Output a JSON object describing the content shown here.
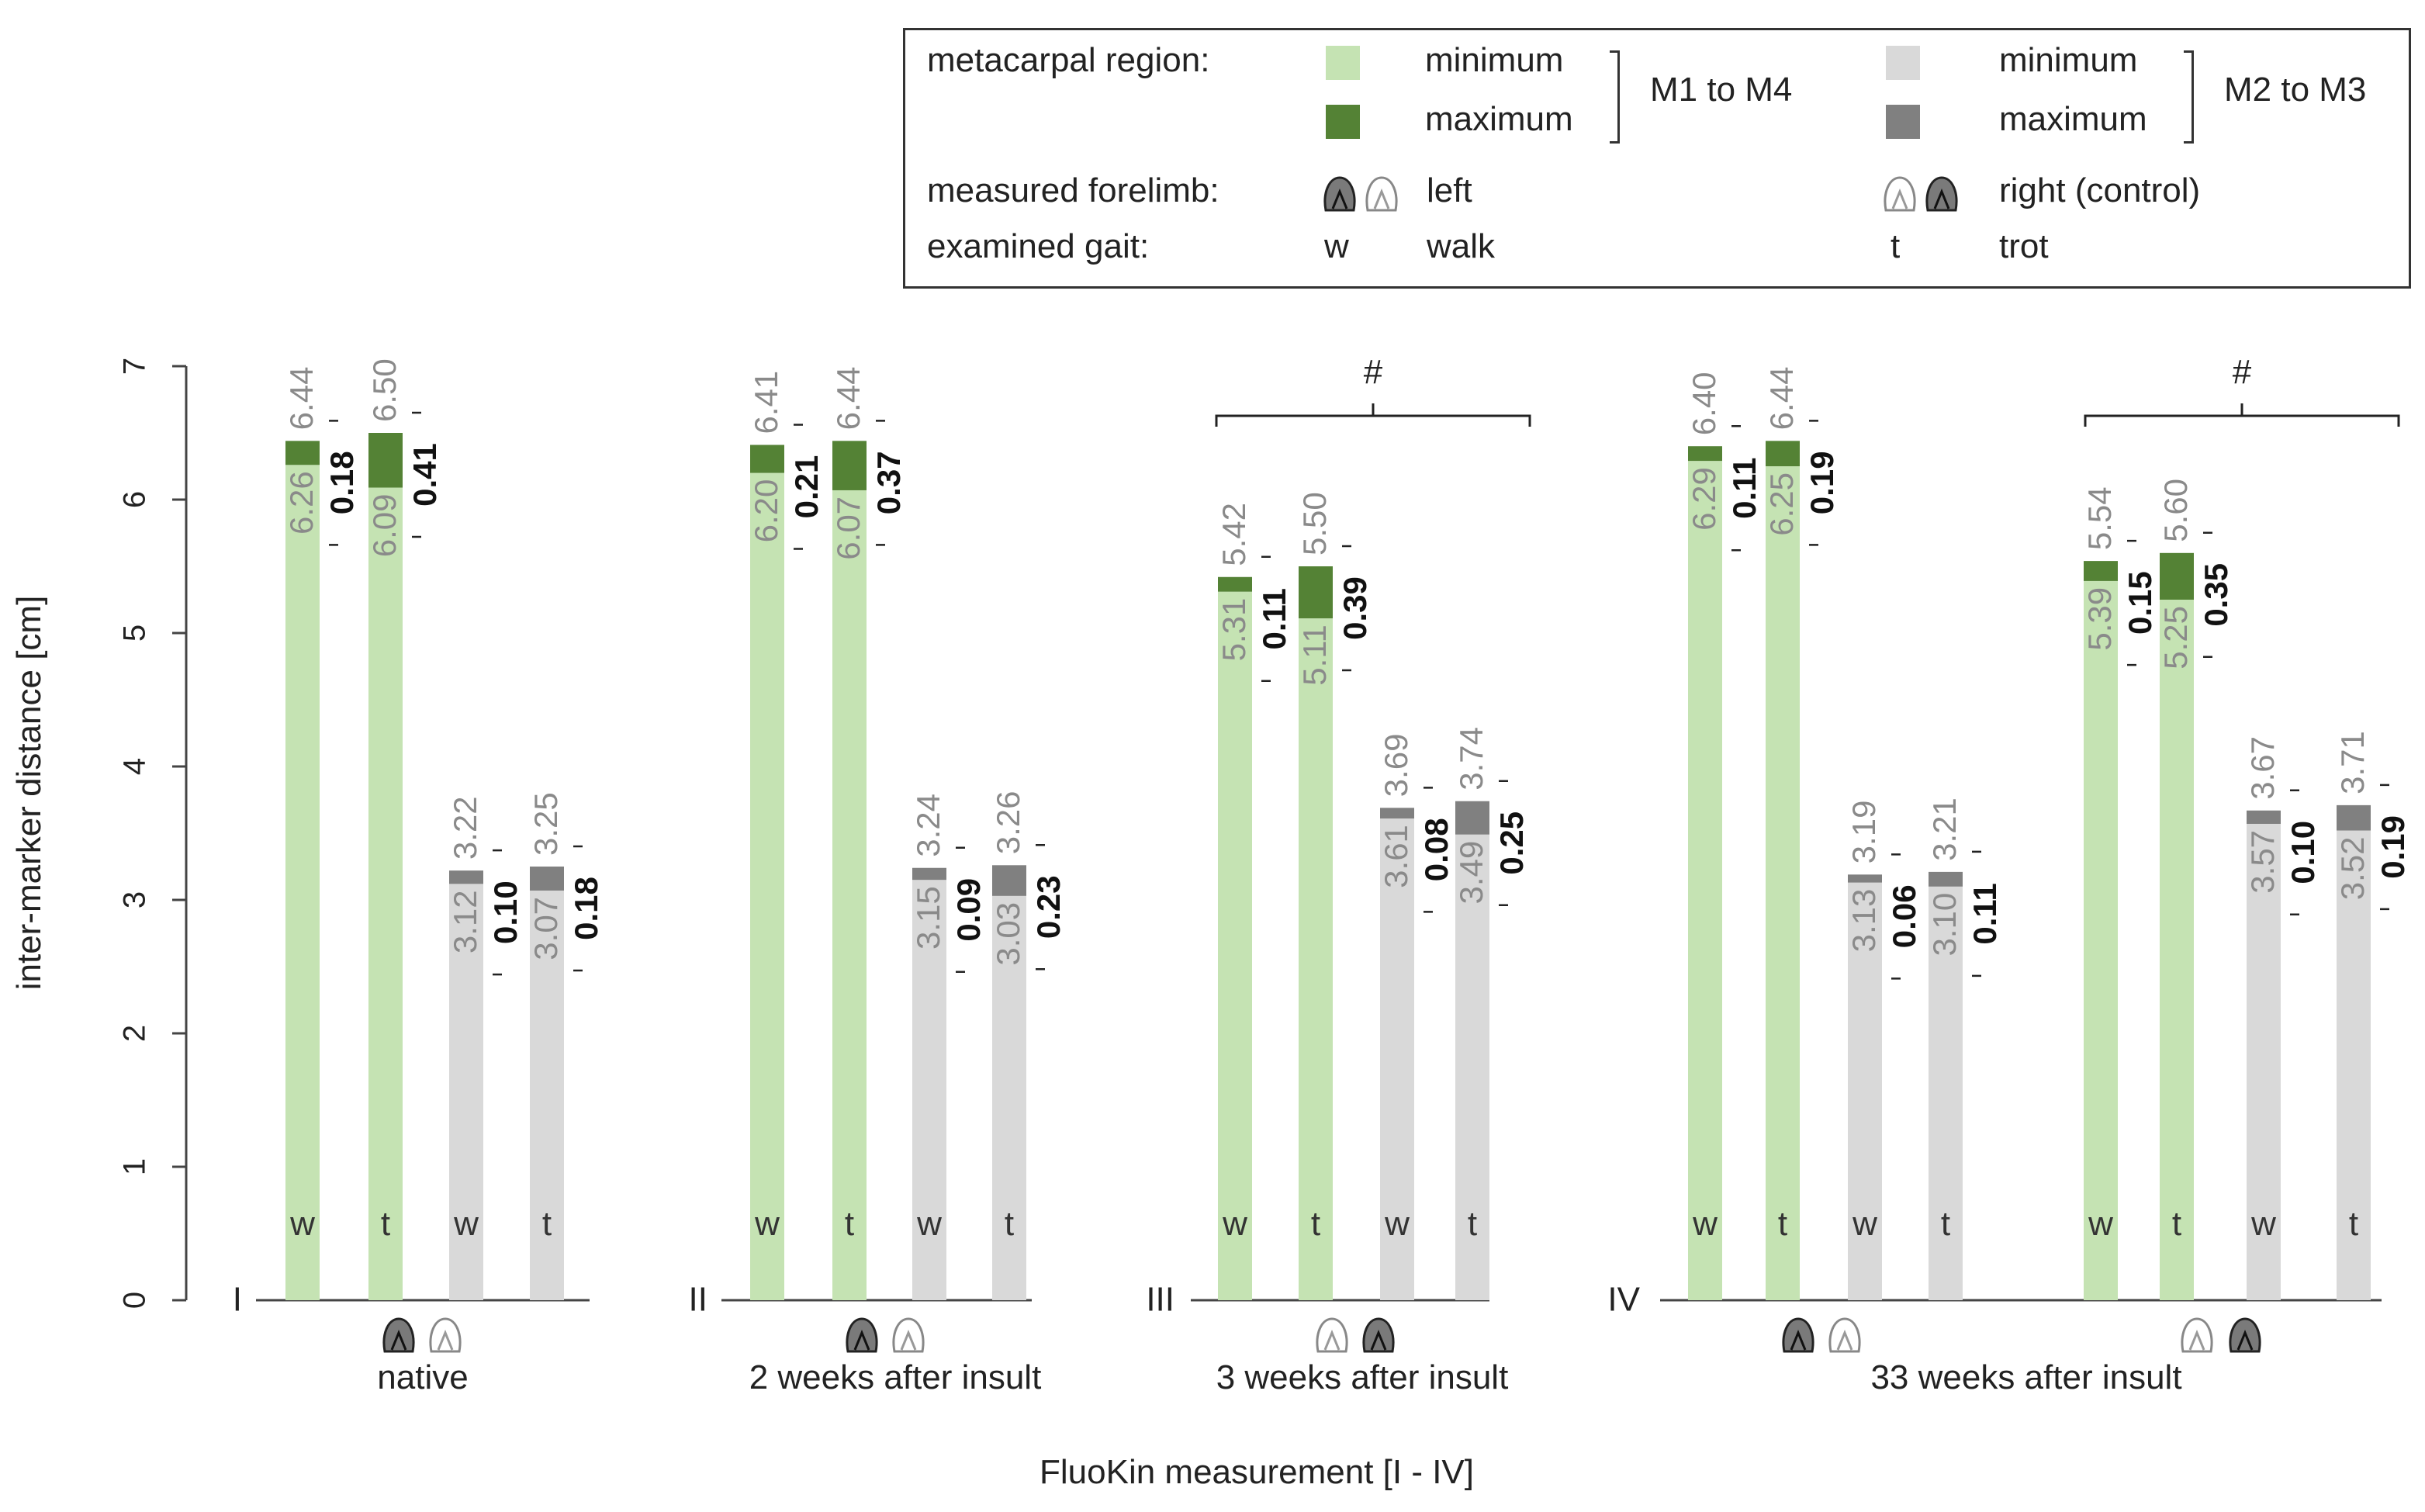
{
  "legend": {
    "region_label": "metacarpal region:",
    "minimum": "minimum",
    "maximum": "maximum",
    "m1_m4": "M1 to M4",
    "m2_m3": "M2 to M3",
    "forelimb_label": "measured forelimb:",
    "left": "left",
    "right": "right (control)",
    "gait_label": "examined gait:",
    "w": "w",
    "walk": "walk",
    "t": "t",
    "trot": "trot"
  },
  "colors": {
    "green_min": "#c5e3b3",
    "green_max": "#548235",
    "grey_min": "#d9d9d9",
    "grey_max": "#808080",
    "grey_text": "#8a8a8a"
  },
  "chart_data": {
    "type": "bar",
    "subtype": "stacked range bars (minimum to maximum)",
    "title": "",
    "xlabel": "FluoKin measurement [I - IV]",
    "ylabel": "inter-marker distance [cm]",
    "ylim": [
      0,
      7
    ],
    "yticks": [
      0,
      1,
      2,
      3,
      4,
      5,
      6,
      7
    ],
    "groups": [
      {
        "roman": "I",
        "label": "native",
        "limb_order": [
          "left",
          "right"
        ],
        "significance": "",
        "bars": [
          {
            "region": "M1 to M4",
            "gait": "w",
            "min": 6.26,
            "max": 6.44,
            "diff": "0.18",
            "min_label": "6.26",
            "max_label": "6.44"
          },
          {
            "region": "M1 to M4",
            "gait": "t",
            "min": 6.09,
            "max": 6.5,
            "diff": "0.41",
            "min_label": "6.09",
            "max_label": "6.50"
          },
          {
            "region": "M2 to M3",
            "gait": "w",
            "min": 3.12,
            "max": 3.22,
            "diff": "0.10",
            "min_label": "3.12",
            "max_label": "3.22"
          },
          {
            "region": "M2 to M3",
            "gait": "t",
            "min": 3.07,
            "max": 3.25,
            "diff": "0.18",
            "min_label": "3.07",
            "max_label": "3.25"
          }
        ]
      },
      {
        "roman": "II",
        "label": "2 weeks after insult",
        "limb_order": [
          "left",
          "right"
        ],
        "significance": "",
        "bars": [
          {
            "region": "M1 to M4",
            "gait": "w",
            "min": 6.2,
            "max": 6.41,
            "diff": "0.21",
            "min_label": "6.20",
            "max_label": "6.41"
          },
          {
            "region": "M1 to M4",
            "gait": "t",
            "min": 6.07,
            "max": 6.44,
            "diff": "0.37",
            "min_label": "6.07",
            "max_label": "6.44"
          },
          {
            "region": "M2 to M3",
            "gait": "w",
            "min": 3.15,
            "max": 3.24,
            "diff": "0.09",
            "min_label": "3.15",
            "max_label": "3.24"
          },
          {
            "region": "M2 to M3",
            "gait": "t",
            "min": 3.03,
            "max": 3.26,
            "diff": "0.23",
            "min_label": "3.03",
            "max_label": "3.26"
          }
        ]
      },
      {
        "roman": "III",
        "label": "3 weeks after insult",
        "limb_order": [
          "right",
          "left"
        ],
        "significance": "#",
        "bars": [
          {
            "region": "M1 to M4",
            "gait": "w",
            "min": 5.31,
            "max": 5.42,
            "diff": "0.11",
            "min_label": "5.31",
            "max_label": "5.42"
          },
          {
            "region": "M1 to M4",
            "gait": "t",
            "min": 5.11,
            "max": 5.5,
            "diff": "0.39",
            "min_label": "5.11",
            "max_label": "5.50"
          },
          {
            "region": "M2 to M3",
            "gait": "w",
            "min": 3.61,
            "max": 3.69,
            "diff": "0.08",
            "min_label": "3.61",
            "max_label": "3.69"
          },
          {
            "region": "M2 to M3",
            "gait": "t",
            "min": 3.49,
            "max": 3.74,
            "diff": "0.25",
            "min_label": "3.49",
            "max_label": "3.74"
          }
        ]
      },
      {
        "roman": "IV",
        "label": "33 weeks after insult",
        "limb_order": [
          "left",
          "right",
          "right",
          "left"
        ],
        "significance": "#",
        "bars": [
          {
            "region": "M1 to M4",
            "gait": "w",
            "min": 6.29,
            "max": 6.4,
            "diff": "0.11",
            "min_label": "6.29",
            "max_label": "6.40"
          },
          {
            "region": "M1 to M4",
            "gait": "t",
            "min": 6.25,
            "max": 6.44,
            "diff": "0.19",
            "min_label": "6.25",
            "max_label": "6.44"
          },
          {
            "region": "M2 to M3",
            "gait": "w",
            "min": 3.13,
            "max": 3.19,
            "diff": "0.06",
            "min_label": "3.13",
            "max_label": "3.19"
          },
          {
            "region": "M2 to M3",
            "gait": "t",
            "min": 3.1,
            "max": 3.21,
            "diff": "0.11",
            "min_label": "3.10",
            "max_label": "3.21"
          },
          {
            "region": "M1 to M4",
            "gait": "w",
            "min": 5.39,
            "max": 5.54,
            "diff": "0.15",
            "min_label": "5.39",
            "max_label": "5.54"
          },
          {
            "region": "M1 to M4",
            "gait": "t",
            "min": 5.25,
            "max": 5.6,
            "diff": "0.35",
            "min_label": "5.25",
            "max_label": "5.60"
          },
          {
            "region": "M2 to M3",
            "gait": "w",
            "min": 3.57,
            "max": 3.67,
            "diff": "0.10",
            "min_label": "3.57",
            "max_label": "3.67"
          },
          {
            "region": "M2 to M3",
            "gait": "t",
            "min": 3.52,
            "max": 3.71,
            "diff": "0.19",
            "min_label": "3.52",
            "max_label": "3.71"
          }
        ]
      }
    ]
  }
}
